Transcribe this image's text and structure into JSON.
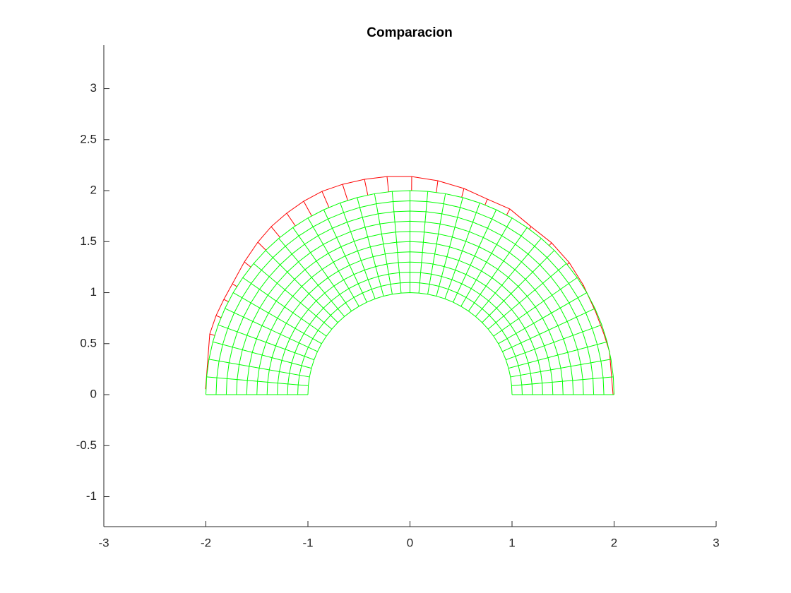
{
  "chart_data": {
    "type": "mesh",
    "title": "Comparacion",
    "xlim": [
      -3,
      3
    ],
    "ylim": [
      -1.294,
      3.426
    ],
    "xticks": [
      -3,
      -2,
      -1,
      0,
      1,
      2,
      3
    ],
    "yticks": [
      -1,
      -0.5,
      0,
      0.5,
      1,
      1.5,
      2,
      2.5,
      3
    ],
    "mesh": {
      "color": "#00ff00",
      "radii": [
        1,
        1.1,
        1.2,
        1.3,
        1.4,
        1.5,
        1.6,
        1.7,
        1.8,
        1.9,
        2
      ],
      "angles": [
        0,
        5,
        10,
        15,
        20,
        25,
        30,
        35,
        40,
        45,
        50,
        55,
        60,
        65,
        70,
        75,
        80,
        85,
        90,
        95,
        100,
        105,
        110,
        115,
        120,
        125,
        130,
        135,
        140,
        145,
        150,
        155,
        160,
        165,
        170,
        175,
        180
      ]
    },
    "deformed": {
      "color": "#ff0000",
      "x": [
        -2.003,
        -1.962,
        -1.9,
        -1.824,
        -1.74,
        -1.623,
        -1.491,
        -1.36,
        -1.208,
        -1.042,
        -0.862,
        -0.661,
        -0.446,
        -0.225,
        0.017,
        0.273,
        0.529,
        0.758,
        0.979,
        1.187,
        1.388,
        1.561,
        1.699,
        1.817,
        1.9,
        1.955,
        1.99
      ],
      "y": [
        0.055,
        0.595,
        0.775,
        0.934,
        1.087,
        1.301,
        1.495,
        1.647,
        1.779,
        1.896,
        1.993,
        2.062,
        2.111,
        2.138,
        2.138,
        2.097,
        2.021,
        1.917,
        1.82,
        1.647,
        1.488,
        1.294,
        1.073,
        0.817,
        0.595,
        0.422,
        0
      ]
    }
  }
}
